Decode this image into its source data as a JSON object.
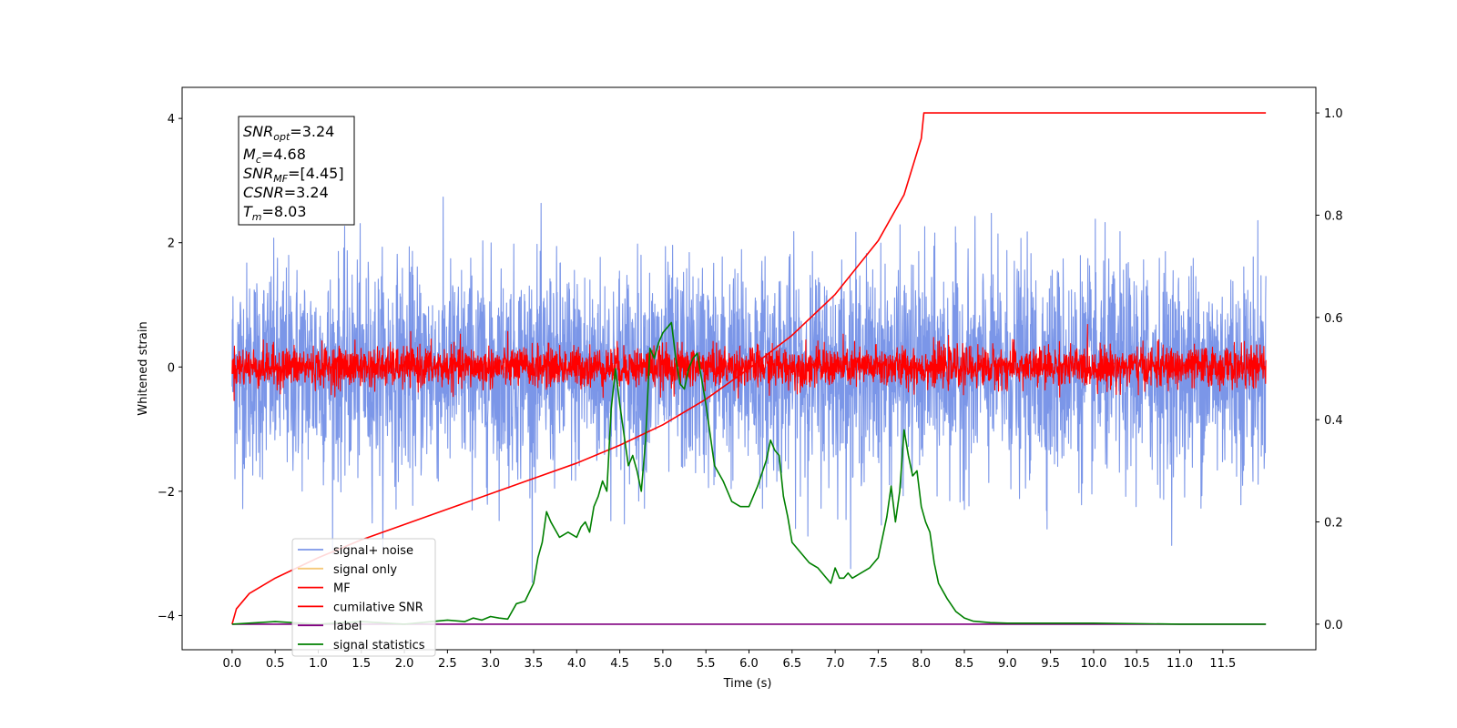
{
  "chart_data": {
    "type": "line",
    "xlabel": "Time (s)",
    "ylabel": "Whitened strain",
    "xlim": [
      -0.58,
      12.58
    ],
    "ylim_left": [
      -4.55,
      4.5
    ],
    "ylim_right": [
      -0.05,
      1.05
    ],
    "x_ticks": [
      "0.0",
      "0.5",
      "1.0",
      "1.5",
      "2.0",
      "2.5",
      "3.0",
      "3.5",
      "4.0",
      "4.5",
      "5.0",
      "5.5",
      "6.0",
      "6.5",
      "7.0",
      "7.5",
      "8.0",
      "8.5",
      "9.0",
      "9.5",
      "10.0",
      "10.5",
      "11.0",
      "11.5"
    ],
    "y_ticks_left": [
      "4",
      "2",
      "0",
      "−2",
      "−4"
    ],
    "y_ticks_right": [
      "1.0",
      "0.8",
      "0.6",
      "0.4",
      "0.2",
      "0.0"
    ],
    "info_box": {
      "line1": {
        "base": "SNR",
        "sub": "opt",
        "rest": "=3.24"
      },
      "line2": {
        "base": "M",
        "sub": "c",
        "rest": "=4.68"
      },
      "line3": {
        "base": "SNR",
        "sub": "MF",
        "rest": "=[4.45]"
      },
      "line4": {
        "base": "CSNR",
        "sub": "",
        "rest": "=3.24"
      },
      "line5": {
        "base": "T",
        "sub": "m",
        "rest": "=8.03"
      }
    },
    "legend": {
      "placement": "lower-left",
      "entries": [
        {
          "label": "signal+ noise",
          "color": "#7b96e8"
        },
        {
          "label": "signal only",
          "color": "#f5c97a"
        },
        {
          "label": "MF",
          "color": "#ff0000"
        },
        {
          "label": "cumilative SNR",
          "color": "#ff0000"
        },
        {
          "label": "label",
          "color": "#800080"
        },
        {
          "label": "signal statistics",
          "color": "#008000"
        }
      ]
    },
    "series": [
      {
        "name": "signal+ noise",
        "axis": "left",
        "color": "#7b96e8",
        "style": "noise",
        "x_range": [
          0,
          12
        ],
        "center": -0.05,
        "sigma": 0.85
      },
      {
        "name": "MF",
        "axis": "left",
        "color": "#ff0000",
        "style": "noise",
        "x_range": [
          0,
          12
        ],
        "center": 0.0,
        "sigma": 0.16
      },
      {
        "name": "cumilative SNR",
        "axis": "right",
        "color": "#ff0000",
        "style": "line",
        "x": [
          0,
          0.05,
          0.2,
          0.5,
          1.0,
          1.5,
          2.0,
          2.5,
          3.0,
          3.5,
          4.0,
          4.5,
          5.0,
          5.5,
          6.0,
          6.5,
          7.0,
          7.5,
          7.8,
          8.0,
          8.03,
          12.0
        ],
        "values": [
          0.0,
          0.03,
          0.06,
          0.09,
          0.13,
          0.165,
          0.195,
          0.225,
          0.255,
          0.285,
          0.315,
          0.35,
          0.39,
          0.44,
          0.5,
          0.565,
          0.645,
          0.75,
          0.84,
          0.95,
          1.0,
          1.0
        ]
      },
      {
        "name": "label",
        "axis": "right",
        "color": "#800080",
        "style": "line",
        "x": [
          0,
          12
        ],
        "values": [
          0.0,
          0.0
        ]
      },
      {
        "name": "signal statistics",
        "axis": "right",
        "color": "#008000",
        "style": "line",
        "x": [
          0,
          0.5,
          1.0,
          1.5,
          2.0,
          2.5,
          2.7,
          2.8,
          2.9,
          3.0,
          3.1,
          3.2,
          3.3,
          3.4,
          3.5,
          3.55,
          3.6,
          3.65,
          3.7,
          3.8,
          3.9,
          4.0,
          4.05,
          4.1,
          4.15,
          4.2,
          4.25,
          4.3,
          4.35,
          4.4,
          4.45,
          4.5,
          4.55,
          4.6,
          4.65,
          4.7,
          4.75,
          4.8,
          4.85,
          4.9,
          4.95,
          5.0,
          5.05,
          5.1,
          5.15,
          5.2,
          5.25,
          5.3,
          5.35,
          5.4,
          5.45,
          5.5,
          5.55,
          5.6,
          5.7,
          5.8,
          5.9,
          6.0,
          6.1,
          6.2,
          6.25,
          6.3,
          6.35,
          6.4,
          6.45,
          6.5,
          6.6,
          6.7,
          6.8,
          6.9,
          6.95,
          7.0,
          7.05,
          7.1,
          7.15,
          7.2,
          7.3,
          7.4,
          7.5,
          7.6,
          7.65,
          7.7,
          7.75,
          7.8,
          7.85,
          7.9,
          7.95,
          8.0,
          8.05,
          8.1,
          8.15,
          8.2,
          8.3,
          8.4,
          8.5,
          8.6,
          8.8,
          9.0,
          10.0,
          11.0,
          12.0
        ],
        "values": [
          0.0,
          0.005,
          0.0,
          0.005,
          0.0,
          0.008,
          0.005,
          0.012,
          0.008,
          0.015,
          0.012,
          0.01,
          0.04,
          0.045,
          0.08,
          0.13,
          0.16,
          0.22,
          0.2,
          0.17,
          0.18,
          0.17,
          0.19,
          0.2,
          0.18,
          0.23,
          0.25,
          0.28,
          0.26,
          0.42,
          0.5,
          0.43,
          0.37,
          0.31,
          0.33,
          0.3,
          0.26,
          0.36,
          0.54,
          0.52,
          0.55,
          0.57,
          0.58,
          0.59,
          0.52,
          0.47,
          0.46,
          0.5,
          0.52,
          0.53,
          0.48,
          0.43,
          0.37,
          0.31,
          0.28,
          0.24,
          0.23,
          0.23,
          0.27,
          0.32,
          0.36,
          0.34,
          0.33,
          0.25,
          0.21,
          0.16,
          0.14,
          0.12,
          0.11,
          0.09,
          0.08,
          0.11,
          0.09,
          0.09,
          0.1,
          0.09,
          0.1,
          0.11,
          0.13,
          0.21,
          0.27,
          0.2,
          0.26,
          0.38,
          0.33,
          0.29,
          0.3,
          0.23,
          0.2,
          0.18,
          0.12,
          0.08,
          0.05,
          0.025,
          0.012,
          0.006,
          0.003,
          0.002,
          0.002,
          0.0,
          0.0
        ]
      }
    ]
  }
}
